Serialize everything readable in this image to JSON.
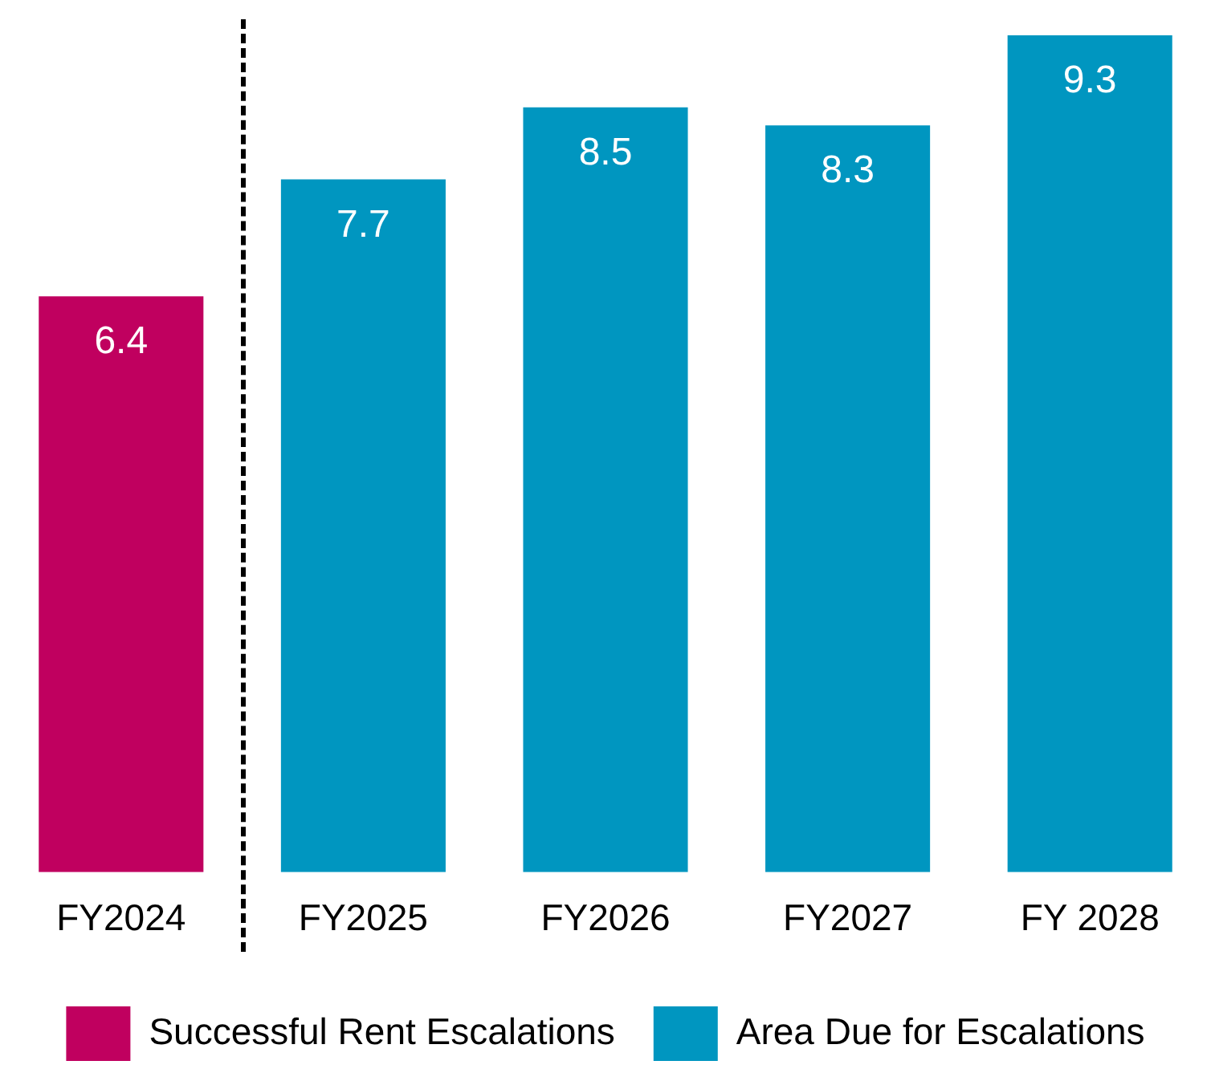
{
  "chart_data": {
    "type": "bar",
    "categories": [
      "FY2024",
      "FY2025",
      "FY2026",
      "FY2027",
      "FY 2028"
    ],
    "series": [
      {
        "name": "Successful Rent Escalations",
        "color": "#c0005f",
        "values": [
          6.4,
          null,
          null,
          null,
          null
        ]
      },
      {
        "name": "Area Due for Escalations",
        "color": "#0096c0",
        "values": [
          null,
          7.7,
          8.5,
          8.3,
          9.3
        ]
      }
    ],
    "data_labels": true,
    "legend": "bottom",
    "grid": false
  }
}
